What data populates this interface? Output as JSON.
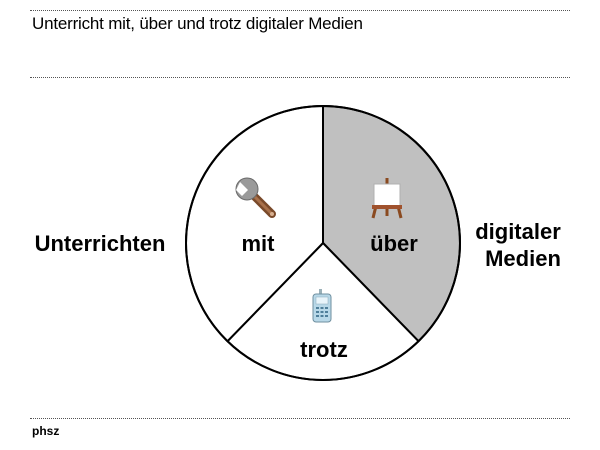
{
  "title": "Unterricht mit, über und trotz digitaler Medien",
  "footer": "phsz",
  "diagram": {
    "left_label": "Unterrichten",
    "right_label_line1": "digitaler",
    "right_label_line2": "Medien",
    "segments": [
      {
        "label": "mit",
        "icon": "wrench-icon",
        "fill": "#ffffff"
      },
      {
        "label": "über",
        "icon": "easel-icon",
        "fill": "#c0c0c0"
      },
      {
        "label": "trotz",
        "icon": "mobile-phone-icon",
        "fill": "#ffffff"
      }
    ]
  }
}
